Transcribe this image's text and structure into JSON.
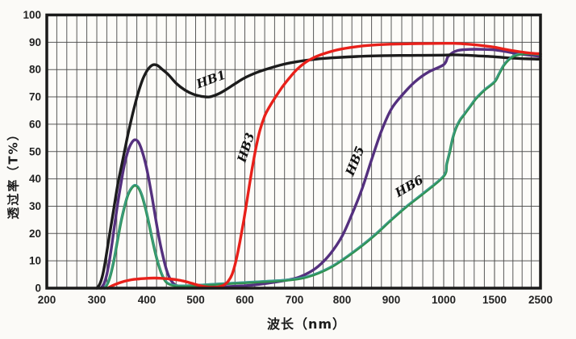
{
  "figure": {
    "xlabel": "波长（nm）",
    "ylabel": "透过率（T%）"
  },
  "chart_data": {
    "type": "line",
    "title": "",
    "xlabel": "波长（nm）",
    "ylabel": "透过率（T%）",
    "grid": "on",
    "ylim": [
      0,
      100
    ],
    "y_ticks": [
      0,
      10,
      20,
      30,
      40,
      50,
      60,
      70,
      80,
      90,
      100
    ],
    "x_ticks": [
      200,
      300,
      400,
      500,
      600,
      700,
      800,
      900,
      1000,
      1500,
      2500
    ],
    "x_scale": "piecewise non-linear: 100nm/div from 200-1000, compressed 1000-1500 (100nm minor) and 1500-2500 (200nm minor)",
    "x_minor_steps": [
      {
        "from": 200,
        "to": 1000,
        "step": 20
      },
      {
        "from": 1000,
        "to": 1500,
        "step": 100
      },
      {
        "from": 1500,
        "to": 2500,
        "step": 200
      }
    ],
    "series": [
      {
        "name": "HB1",
        "color": "#1c1c1c",
        "points": [
          [
            300,
            0
          ],
          [
            306,
            1.5
          ],
          [
            312,
            5
          ],
          [
            318,
            11
          ],
          [
            325,
            19
          ],
          [
            333,
            28
          ],
          [
            342,
            38
          ],
          [
            352,
            47
          ],
          [
            362,
            56
          ],
          [
            372,
            64
          ],
          [
            382,
            71
          ],
          [
            392,
            76.5
          ],
          [
            402,
            80
          ],
          [
            412,
            81.7
          ],
          [
            422,
            81.5
          ],
          [
            432,
            80
          ],
          [
            445,
            78
          ],
          [
            460,
            75
          ],
          [
            478,
            72.5
          ],
          [
            495,
            71
          ],
          [
            512,
            70.2
          ],
          [
            528,
            70
          ],
          [
            545,
            71
          ],
          [
            562,
            72.7
          ],
          [
            580,
            74.8
          ],
          [
            600,
            77
          ],
          [
            625,
            79
          ],
          [
            650,
            80.5
          ],
          [
            680,
            82
          ],
          [
            710,
            83
          ],
          [
            745,
            83.8
          ],
          [
            780,
            84.3
          ],
          [
            830,
            84.8
          ],
          [
            890,
            85.1
          ],
          [
            950,
            85.2
          ],
          [
            1000,
            85.3
          ],
          [
            1100,
            85.4
          ],
          [
            1200,
            85.3
          ],
          [
            1300,
            85.1
          ],
          [
            1400,
            84.9
          ],
          [
            1500,
            84.7
          ],
          [
            1700,
            84.4
          ],
          [
            1900,
            84.2
          ],
          [
            2100,
            84.0
          ],
          [
            2300,
            83.9
          ],
          [
            2500,
            83.8
          ]
        ]
      },
      {
        "name": "HB3",
        "color": "#e8201a",
        "points": [
          [
            322,
            0
          ],
          [
            330,
            0.8
          ],
          [
            340,
            1.6
          ],
          [
            355,
            2.5
          ],
          [
            370,
            3.1
          ],
          [
            385,
            3.4
          ],
          [
            400,
            3.6
          ],
          [
            415,
            3.7
          ],
          [
            430,
            3.6
          ],
          [
            445,
            3.4
          ],
          [
            460,
            3.1
          ],
          [
            475,
            2.6
          ],
          [
            490,
            1.9
          ],
          [
            505,
            1.1
          ],
          [
            520,
            0.5
          ],
          [
            535,
            0.3
          ],
          [
            548,
            0.5
          ],
          [
            558,
            1.2
          ],
          [
            566,
            2.5
          ],
          [
            574,
            5
          ],
          [
            582,
            10
          ],
          [
            590,
            17
          ],
          [
            598,
            25
          ],
          [
            606,
            34
          ],
          [
            614,
            43
          ],
          [
            622,
            51
          ],
          [
            630,
            57.5
          ],
          [
            640,
            63
          ],
          [
            650,
            66.5
          ],
          [
            662,
            70
          ],
          [
            675,
            73.5
          ],
          [
            690,
            77
          ],
          [
            705,
            80
          ],
          [
            722,
            82.5
          ],
          [
            740,
            84.3
          ],
          [
            760,
            85.7
          ],
          [
            785,
            87
          ],
          [
            815,
            88
          ],
          [
            850,
            88.8
          ],
          [
            900,
            89.3
          ],
          [
            950,
            89.5
          ],
          [
            1000,
            89.6
          ],
          [
            1100,
            89.6
          ],
          [
            1200,
            89.4
          ],
          [
            1300,
            89.1
          ],
          [
            1400,
            88.7
          ],
          [
            1500,
            88.2
          ],
          [
            1700,
            87.5
          ],
          [
            1900,
            86.9
          ],
          [
            2100,
            86.4
          ],
          [
            2300,
            86.0
          ],
          [
            2500,
            85.8
          ]
        ]
      },
      {
        "name": "HB5",
        "color": "#54307e",
        "points": [
          [
            308,
            0
          ],
          [
            314,
            1.5
          ],
          [
            320,
            5
          ],
          [
            327,
            12
          ],
          [
            334,
            21
          ],
          [
            341,
            30
          ],
          [
            348,
            38
          ],
          [
            355,
            45
          ],
          [
            362,
            50
          ],
          [
            369,
            53
          ],
          [
            376,
            54.3
          ],
          [
            383,
            53.5
          ],
          [
            390,
            50.5
          ],
          [
            397,
            46
          ],
          [
            404,
            40
          ],
          [
            411,
            33
          ],
          [
            418,
            25.5
          ],
          [
            425,
            18.5
          ],
          [
            432,
            12.5
          ],
          [
            439,
            7.5
          ],
          [
            446,
            4
          ],
          [
            453,
            2
          ],
          [
            460,
            1
          ],
          [
            475,
            0.5
          ],
          [
            500,
            0.4
          ],
          [
            540,
            0.4
          ],
          [
            580,
            0.7
          ],
          [
            620,
            1.2
          ],
          [
            660,
            2.2
          ],
          [
            700,
            3.5
          ],
          [
            725,
            5.2
          ],
          [
            750,
            8
          ],
          [
            775,
            12.5
          ],
          [
            800,
            19
          ],
          [
            820,
            27
          ],
          [
            840,
            36
          ],
          [
            860,
            47
          ],
          [
            880,
            57.5
          ],
          [
            900,
            65.5
          ],
          [
            920,
            70.5
          ],
          [
            945,
            75.5
          ],
          [
            970,
            79
          ],
          [
            1000,
            81.8
          ],
          [
            1040,
            84.6
          ],
          [
            1080,
            86
          ],
          [
            1140,
            87
          ],
          [
            1250,
            87.4
          ],
          [
            1400,
            87.4
          ],
          [
            1500,
            87.2
          ],
          [
            1700,
            86.7
          ],
          [
            1900,
            86.1
          ],
          [
            2100,
            85.6
          ],
          [
            2300,
            85.2
          ],
          [
            2500,
            84.8
          ]
        ]
      },
      {
        "name": "HB6",
        "color": "#2f9150",
        "edge_color": "#3f9e93",
        "points": [
          [
            315,
            0
          ],
          [
            321,
            1.5
          ],
          [
            327,
            4.5
          ],
          [
            334,
            10
          ],
          [
            341,
            17
          ],
          [
            348,
            24
          ],
          [
            355,
            29.5
          ],
          [
            362,
            34
          ],
          [
            369,
            36.5
          ],
          [
            376,
            37.6
          ],
          [
            383,
            36.8
          ],
          [
            390,
            34
          ],
          [
            397,
            29.5
          ],
          [
            404,
            24
          ],
          [
            411,
            18
          ],
          [
            418,
            12.5
          ],
          [
            425,
            8
          ],
          [
            432,
            4.5
          ],
          [
            440,
            2.2
          ],
          [
            450,
            1.2
          ],
          [
            465,
            0.8
          ],
          [
            490,
            0.9
          ],
          [
            530,
            1.3
          ],
          [
            570,
            1.7
          ],
          [
            610,
            2.1
          ],
          [
            650,
            2.5
          ],
          [
            690,
            3
          ],
          [
            720,
            3.8
          ],
          [
            750,
            5.5
          ],
          [
            780,
            8
          ],
          [
            810,
            11.5
          ],
          [
            840,
            15.5
          ],
          [
            870,
            20
          ],
          [
            900,
            25
          ],
          [
            930,
            30
          ],
          [
            960,
            34.5
          ],
          [
            1000,
            41
          ],
          [
            1030,
            45.5
          ],
          [
            1060,
            50
          ],
          [
            1090,
            55
          ],
          [
            1120,
            58.5
          ],
          [
            1160,
            61.5
          ],
          [
            1200,
            63.5
          ],
          [
            1260,
            66.5
          ],
          [
            1320,
            69.5
          ],
          [
            1400,
            72.5
          ],
          [
            1500,
            75.5
          ],
          [
            1600,
            78.5
          ],
          [
            1700,
            81.5
          ],
          [
            1800,
            83.5
          ],
          [
            1900,
            84.8
          ],
          [
            2000,
            85.4
          ],
          [
            2150,
            85.8
          ],
          [
            2300,
            85.8
          ],
          [
            2500,
            85.5
          ]
        ]
      }
    ],
    "labels": [
      {
        "text": "HB1",
        "nm": 534,
        "value": 75,
        "angle": -20
      },
      {
        "text": "HB3",
        "nm": 610,
        "value": 51,
        "angle": -72
      },
      {
        "text": "HB5",
        "nm": 834,
        "value": 46,
        "angle": -68
      },
      {
        "text": "HB6",
        "nm": 938,
        "value": 36,
        "angle": -30
      }
    ]
  }
}
